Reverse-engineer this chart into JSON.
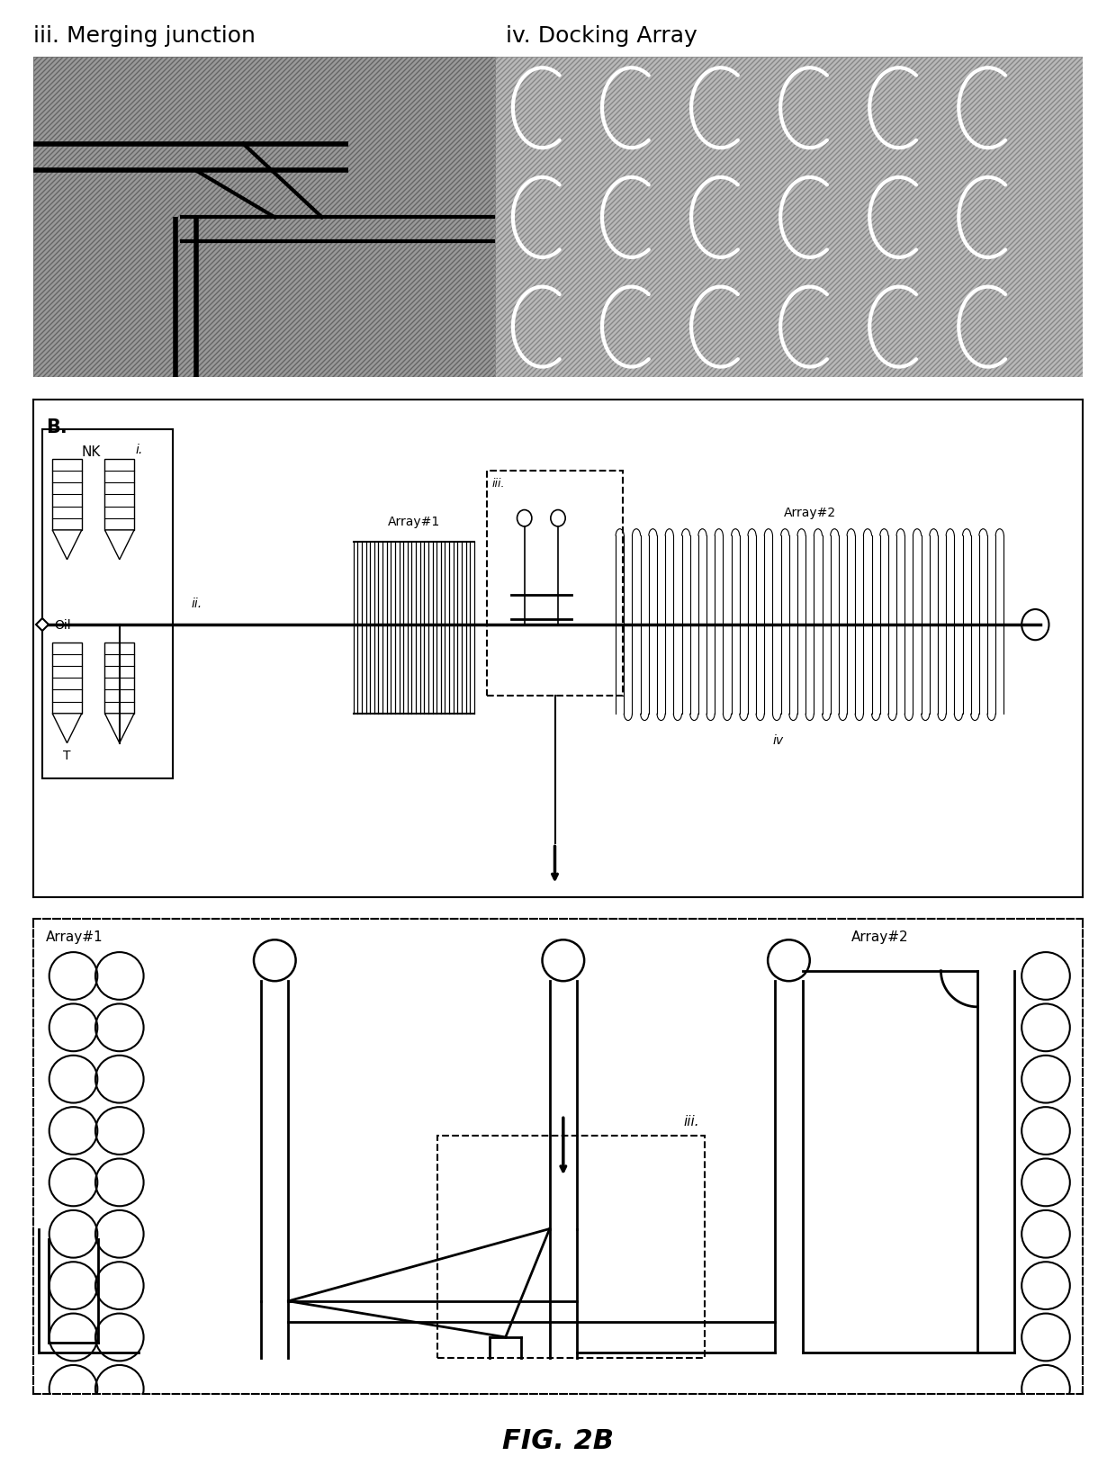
{
  "title_iii": "iii. Merging junction",
  "title_iv": "iv. Docking Array",
  "label_B": "B.",
  "label_NK": "NK",
  "label_Oil": "Oil",
  "label_i": "i.",
  "label_ii": "ii.",
  "label_iii": "iii.",
  "label_iv": "iv",
  "label_array1_top": "Array#1",
  "label_array2_top": "Array#2",
  "label_array1_bottom": "Array#1",
  "label_array2_bottom": "Array#2",
  "label_T": "T",
  "fig_label": "FIG. 2B",
  "bg_color": "#ffffff",
  "gray_dark": "#888888",
  "gray_light": "#b0b0b0"
}
